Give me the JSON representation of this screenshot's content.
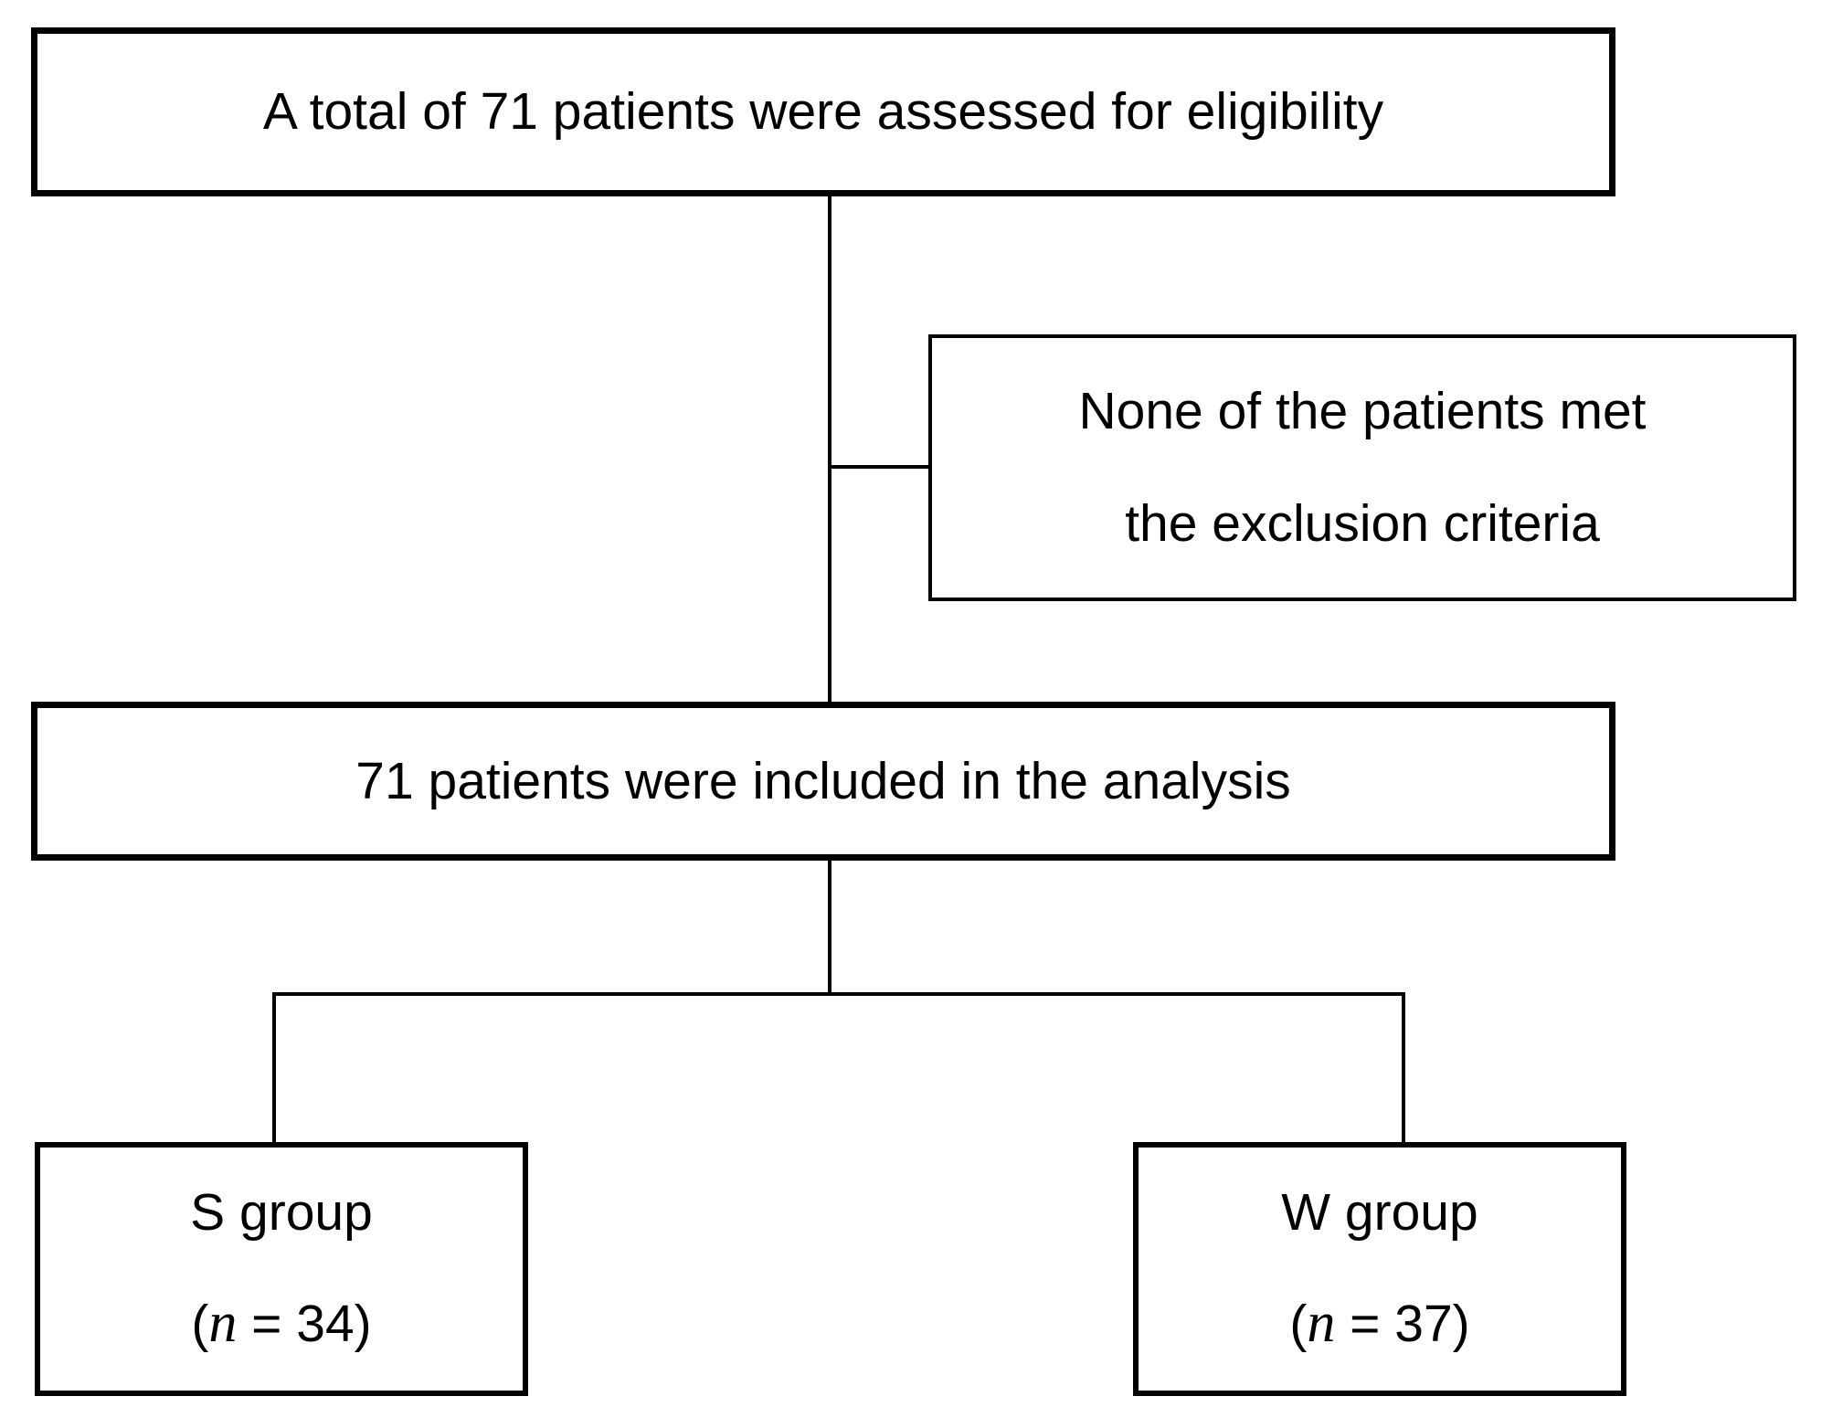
{
  "figure": {
    "background_color": "#ffffff",
    "line_color": "#000000",
    "nodes": {
      "assessed": {
        "text": "A total of 71 patients were assessed for eligibility"
      },
      "excluded": {
        "lines": [
          "None of the patients met",
          "the exclusion criteria"
        ]
      },
      "included": {
        "text": "71 patients were included in the analysis"
      },
      "group_s": {
        "title": "S group",
        "count_prefix": "(",
        "count_var": "n",
        "count_suffix": " = 34)"
      },
      "group_w": {
        "title": "W group",
        "count_prefix": "(",
        "count_var": "n",
        "count_suffix": " = 37)"
      }
    }
  }
}
